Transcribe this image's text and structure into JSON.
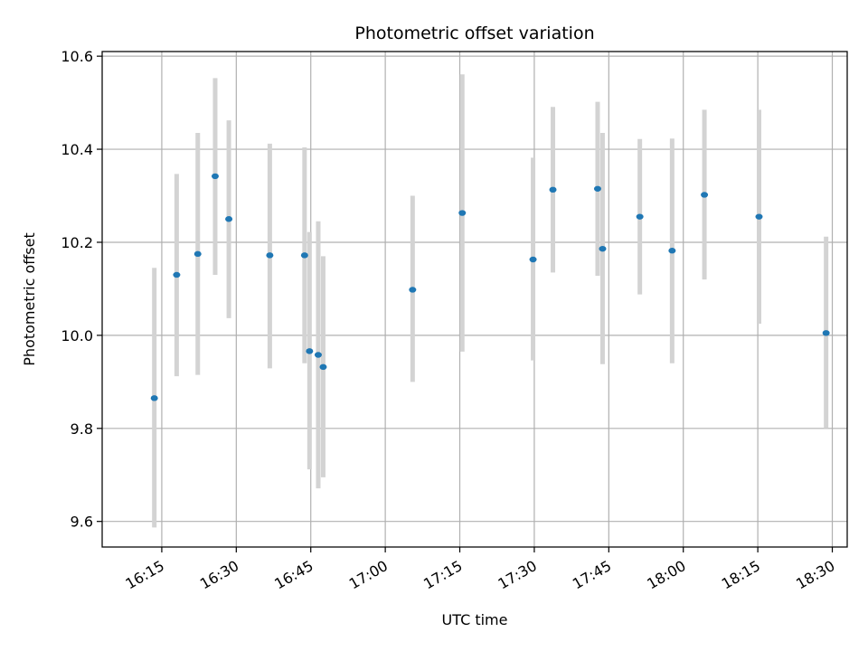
{
  "chart_data": {
    "type": "scatter",
    "title": "Photometric offset variation",
    "xlabel": "UTC time",
    "ylabel": "Photometric offset",
    "x_unit": "UTC time (HH:MM)",
    "xlim": [
      "16:03",
      "18:33"
    ],
    "ylim": [
      9.545,
      10.61
    ],
    "x_ticks": [
      "16:15",
      "16:30",
      "16:45",
      "17:00",
      "17:15",
      "17:30",
      "17:45",
      "18:00",
      "18:15",
      "18:30"
    ],
    "y_ticks": [
      9.6,
      9.8,
      10.0,
      10.2,
      10.4,
      10.6
    ],
    "y_tick_labels": [
      "9.6",
      "9.8",
      "10.0",
      "10.2",
      "10.4",
      "10.6"
    ],
    "grid": true,
    "colors": {
      "point": "#1f77b4",
      "errorbar": "#d3d3d3",
      "grid": "#b0b0b0",
      "axes": "#000000"
    },
    "points": [
      {
        "x": "16:13:30",
        "y": 9.865,
        "low": 9.587,
        "high": 10.145
      },
      {
        "x": "16:18:00",
        "y": 10.13,
        "low": 9.912,
        "high": 10.347
      },
      {
        "x": "16:22:15",
        "y": 10.175,
        "low": 9.915,
        "high": 10.435
      },
      {
        "x": "16:25:45",
        "y": 10.342,
        "low": 10.13,
        "high": 10.553
      },
      {
        "x": "16:28:30",
        "y": 10.25,
        "low": 10.037,
        "high": 10.462
      },
      {
        "x": "16:36:45",
        "y": 10.172,
        "low": 9.929,
        "high": 10.412
      },
      {
        "x": "16:43:45",
        "y": 10.172,
        "low": 9.94,
        "high": 10.404
      },
      {
        "x": "16:44:45",
        "y": 9.966,
        "low": 9.712,
        "high": 10.222
      },
      {
        "x": "16:46:30",
        "y": 9.958,
        "low": 9.671,
        "high": 10.245
      },
      {
        "x": "16:47:30",
        "y": 9.932,
        "low": 9.695,
        "high": 10.17
      },
      {
        "x": "17:05:30",
        "y": 10.098,
        "low": 9.9,
        "high": 10.3
      },
      {
        "x": "17:15:30",
        "y": 10.263,
        "low": 9.965,
        "high": 10.561
      },
      {
        "x": "17:29:45",
        "y": 10.163,
        "low": 9.946,
        "high": 10.382
      },
      {
        "x": "17:33:45",
        "y": 10.313,
        "low": 10.135,
        "high": 10.491
      },
      {
        "x": "17:42:45",
        "y": 10.315,
        "low": 10.128,
        "high": 10.502
      },
      {
        "x": "17:43:45",
        "y": 10.186,
        "low": 9.938,
        "high": 10.435
      },
      {
        "x": "17:51:15",
        "y": 10.255,
        "low": 10.088,
        "high": 10.422
      },
      {
        "x": "17:57:45",
        "y": 10.182,
        "low": 9.94,
        "high": 10.423
      },
      {
        "x": "18:04:15",
        "y": 10.302,
        "low": 10.12,
        "high": 10.485
      },
      {
        "x": "18:15:15",
        "y": 10.255,
        "low": 10.025,
        "high": 10.485
      },
      {
        "x": "18:28:45",
        "y": 10.005,
        "low": 9.8,
        "high": 10.212
      }
    ]
  }
}
